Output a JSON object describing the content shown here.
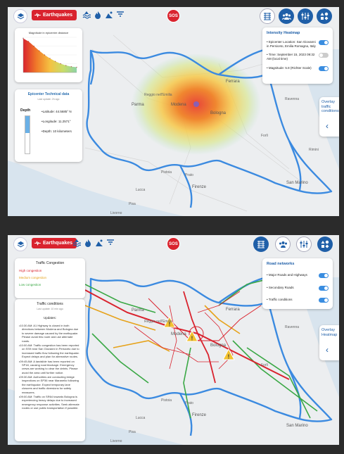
{
  "screen1": {
    "toolbar": {
      "earthquakes_label": "Earthquakes",
      "sos_label": "SOS"
    },
    "chart_panel": {
      "title": "Magnitude in epicentre distance",
      "chart_data": {
        "type": "area",
        "title": "Magnitude in epicentre distance",
        "xlabel": "",
        "ylabel": "",
        "x": [
          0,
          1,
          2,
          3,
          4,
          5,
          6,
          7,
          8,
          9,
          10
        ],
        "values": [
          5.8,
          5.3,
          4.5,
          3.7,
          3.0,
          2.4,
          1.9,
          1.5,
          1.2,
          1.0,
          0.9
        ],
        "ylim": [
          0,
          6
        ],
        "grid": true,
        "colors": [
          "#d9232e",
          "#f07a2a",
          "#f5c242",
          "#c8dd6a",
          "#8dd3a7"
        ]
      }
    },
    "tech_panel": {
      "title": "Epicenter Technical data",
      "subtitle": "Last update: 2h ago",
      "depth_label": "Depth",
      "depth_fill_fraction": 0.45,
      "latitude": "Latitude: 44.5685° N",
      "longitude": "Longitude: 11.2571°",
      "depth": "Depth: 10 kilometers"
    },
    "legend_panel": {
      "title": "Intensity Heatmap",
      "rows": [
        {
          "text": "Epicenter Location: San Giovanni in Persiceto, Emilia Romagna, Italy",
          "on": true
        },
        {
          "text": "Time: September 15, 2023 09:32 AM (local time)",
          "on": false
        },
        {
          "text": "Magnitude: 5.8 (Richter Scale)",
          "on": true
        }
      ]
    },
    "overlay": {
      "label": "Overlay traffic conditions",
      "chevron": "‹"
    },
    "map_labels": {
      "parma": "Parma",
      "reggio": "Reggio nell'Emilia",
      "modena": "Modena",
      "ferrara": "Ferrara",
      "bologna": "Bologna",
      "prato": "Prato",
      "firenze": "Firenze",
      "pistoia": "Pistoia",
      "lucca": "Lucca",
      "pisa": "Pisa",
      "livorno": "Livorno",
      "sanmarino": "San Marino",
      "ravenna": "Ravenna",
      "forli": "Forlì",
      "rimini": "Rimini"
    }
  },
  "screen2": {
    "toolbar": {
      "earthquakes_label": "Earthquakes",
      "sos_label": "SOS"
    },
    "congestion_panel": {
      "title": "Traffic Congestion",
      "items": [
        {
          "label": "High congestion",
          "color": "#d9232e"
        },
        {
          "label": "Medium congestion",
          "color": "#e6a21a"
        },
        {
          "label": "Low congestion",
          "color": "#3aa845"
        }
      ]
    },
    "conditions_panel": {
      "title": "Traffic conditions",
      "subtitle": "Last update: 10 min ago",
      "updates_heading": "Updates:",
      "updates": [
        "10:30 AM: A1 Highway is closed in both directions between Modena and Bologna due to severe damage caused by the earthquake. Please avoid this route and use alternate roads.",
        "10:00 AM: Traffic congestion has been reported on SS9 near San Giovanni in Persiceto due to increased traffic flow following the earthquake. Expect delays and plan for alternative routes.",
        "09:45 AM: A landslide has been reported on SP18, causing road blockage. Emergency crews are working to clear the debris. Please avoid the area until further notice.",
        "09:30 AM: Authorities are conducting bridge inspections on SP36 near Maranello following the earthquake. Expect temporary lane closures and traffic diversions for safety measures.",
        "09:00 AM: Traffic on SR64 towards Bologna is experiencing heavy delays due to increased emergency response activities. Seek alternate routes or use public transportation if possible."
      ]
    },
    "road_panel": {
      "title": "Road networks",
      "rows": [
        {
          "text": "Major Roads and Highways",
          "on": true
        },
        {
          "text": "Secondary Roads",
          "on": true
        },
        {
          "text": "Traffic conditions",
          "on": true
        }
      ]
    },
    "overlay": {
      "label": "Overlay Heatmap",
      "chevron": "‹"
    },
    "map_labels": {
      "parma": "Parma",
      "reggio": "Reggio nell'Emilia",
      "modena": "Modena",
      "ferrara": "Ferrara",
      "bologna": "Bologna",
      "prato": "Prato",
      "firenze": "Firenze",
      "pistoia": "Pistoia",
      "lucca": "Lucca",
      "pisa": "Pisa",
      "livorno": "Livorno",
      "sanmarino": "San Marino",
      "ravenna": "Ravenna",
      "forli": "Forlì"
    }
  }
}
